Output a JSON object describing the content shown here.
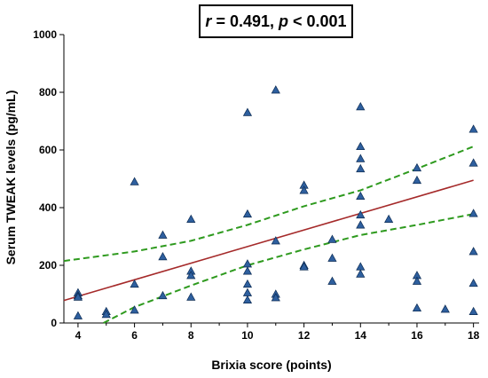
{
  "chart_data": {
    "type": "scatter",
    "title": "",
    "annotation": {
      "r_symbol": "r",
      "r_text": " = 0.491, ",
      "p_symbol": "p",
      "p_text": " < 0.001"
    },
    "xlabel": "Brixia score (points)",
    "ylabel": "Serum TWEAK levels (pg/mL)",
    "xlim": [
      3.5,
      18.2
    ],
    "ylim": [
      0,
      1000
    ],
    "xticks": [
      4,
      6,
      8,
      10,
      12,
      14,
      16,
      18
    ],
    "yticks": [
      0,
      200,
      400,
      600,
      800,
      1000
    ],
    "grid": false,
    "marker": "triangle",
    "marker_color": "#2e5f9e",
    "points": [
      {
        "x": 4,
        "y": 105
      },
      {
        "x": 4,
        "y": 95
      },
      {
        "x": 4,
        "y": 90
      },
      {
        "x": 4,
        "y": 25
      },
      {
        "x": 5,
        "y": 40
      },
      {
        "x": 5,
        "y": 30
      },
      {
        "x": 6,
        "y": 490
      },
      {
        "x": 6,
        "y": 135
      },
      {
        "x": 6,
        "y": 45
      },
      {
        "x": 7,
        "y": 305
      },
      {
        "x": 7,
        "y": 230
      },
      {
        "x": 7,
        "y": 95
      },
      {
        "x": 8,
        "y": 360
      },
      {
        "x": 8,
        "y": 180
      },
      {
        "x": 8,
        "y": 165
      },
      {
        "x": 8,
        "y": 90
      },
      {
        "x": 10,
        "y": 730
      },
      {
        "x": 10,
        "y": 378
      },
      {
        "x": 10,
        "y": 205
      },
      {
        "x": 10,
        "y": 180
      },
      {
        "x": 10,
        "y": 135
      },
      {
        "x": 10,
        "y": 105
      },
      {
        "x": 10,
        "y": 80
      },
      {
        "x": 11,
        "y": 808
      },
      {
        "x": 11,
        "y": 285
      },
      {
        "x": 11,
        "y": 100
      },
      {
        "x": 11,
        "y": 88
      },
      {
        "x": 12,
        "y": 478
      },
      {
        "x": 12,
        "y": 460
      },
      {
        "x": 12,
        "y": 200
      },
      {
        "x": 12,
        "y": 195
      },
      {
        "x": 13,
        "y": 290
      },
      {
        "x": 13,
        "y": 225
      },
      {
        "x": 13,
        "y": 145
      },
      {
        "x": 14,
        "y": 750
      },
      {
        "x": 14,
        "y": 612
      },
      {
        "x": 14,
        "y": 570
      },
      {
        "x": 14,
        "y": 535
      },
      {
        "x": 14,
        "y": 440
      },
      {
        "x": 14,
        "y": 375
      },
      {
        "x": 14,
        "y": 340
      },
      {
        "x": 14,
        "y": 195
      },
      {
        "x": 14,
        "y": 170
      },
      {
        "x": 15,
        "y": 360
      },
      {
        "x": 16,
        "y": 538
      },
      {
        "x": 16,
        "y": 495
      },
      {
        "x": 16,
        "y": 165
      },
      {
        "x": 16,
        "y": 145
      },
      {
        "x": 16,
        "y": 52
      },
      {
        "x": 17,
        "y": 48
      },
      {
        "x": 18,
        "y": 672
      },
      {
        "x": 18,
        "y": 555
      },
      {
        "x": 18,
        "y": 380
      },
      {
        "x": 18,
        "y": 248
      },
      {
        "x": 18,
        "y": 138
      },
      {
        "x": 18,
        "y": 40
      }
    ],
    "regression_line": {
      "color": "#a52a2a",
      "x": [
        3.5,
        18
      ],
      "y": [
        78,
        495
      ]
    },
    "confidence_band": {
      "color": "#2e9a1e",
      "upper": {
        "x": [
          3.5,
          6,
          8,
          10,
          12,
          14,
          16,
          18
        ],
        "y": [
          215,
          248,
          285,
          340,
          405,
          460,
          535,
          612
        ]
      },
      "lower": {
        "x": [
          4.9,
          6,
          8,
          10,
          12,
          14,
          16,
          18
        ],
        "y": [
          0,
          55,
          130,
          200,
          255,
          305,
          340,
          378
        ]
      }
    }
  }
}
